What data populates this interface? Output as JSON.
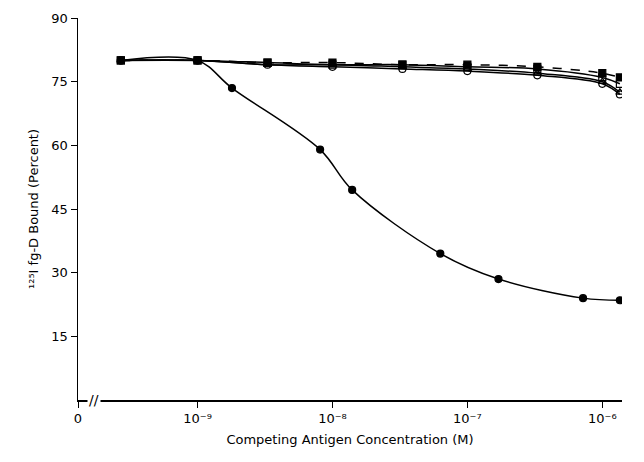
{
  "chart_data": {
    "type": "line",
    "x_title": "Competing Antigen Concentration (M)",
    "y_title": "¹²⁵I fg-D Bound (Percent)",
    "log": "x",
    "grid": false,
    "xlim": [
      1.3e-10,
      1.4e-06
    ],
    "xticks": [
      {
        "value": 1.3e-10,
        "label": "0"
      },
      {
        "value": 1e-09,
        "label": "10⁻⁹"
      },
      {
        "value": 1e-08,
        "label": "10⁻⁸"
      },
      {
        "value": 1e-07,
        "label": "10⁻⁷"
      },
      {
        "value": 1e-06,
        "label": "10⁻⁶"
      }
    ],
    "ylim": [
      0,
      90
    ],
    "yticks": [
      15,
      30,
      45,
      60,
      75,
      90
    ],
    "annotations": [
      {
        "text": "//",
        "x": 1.7e-10,
        "y": 0
      }
    ],
    "series": [
      {
        "color": "#000000",
        "marker": "circle",
        "line_style": "solid",
        "x": [
          2.7e-10,
          1e-09,
          1.8e-09,
          8.1e-09,
          1.4e-08,
          6.3e-08,
          1.7e-07,
          7.2e-07,
          1.35e-06
        ],
        "values": [
          80,
          80,
          73.5,
          59,
          49.5,
          34.5,
          28.5,
          24,
          23.5
        ]
      },
      {
        "color": "#000000",
        "marker": "circle-open",
        "line_style": "solid",
        "x": [
          2.7e-10,
          1e-09,
          3.3e-09,
          1e-08,
          3.3e-08,
          1e-07,
          3.3e-07,
          1e-06,
          1.35e-06
        ],
        "values": [
          80,
          80,
          79,
          78.5,
          78,
          77.5,
          76.5,
          74.5,
          72
        ]
      },
      {
        "color": "#000000",
        "marker": "triangle-up-open",
        "line_style": "solid",
        "x": [
          2.7e-10,
          1e-09,
          3.3e-09,
          1e-08,
          3.3e-08,
          1e-07,
          3.3e-07,
          1e-06,
          1.35e-06
        ],
        "values": [
          80,
          80,
          79,
          79,
          78.5,
          78,
          77,
          75,
          72.5
        ]
      },
      {
        "color": "#000000",
        "marker": "square-open",
        "line_style": "solid",
        "x": [
          2.7e-10,
          1e-09,
          3.3e-09,
          1e-08,
          3.3e-08,
          1e-07,
          3.3e-07,
          1e-06,
          1.35e-06
        ],
        "values": [
          80,
          80,
          79.5,
          79,
          79,
          78.5,
          78,
          76,
          74.5
        ]
      },
      {
        "color": "#000000",
        "marker": "square",
        "line_style": "dashed",
        "x": [
          2.7e-10,
          1e-09,
          3.3e-09,
          1e-08,
          3.3e-08,
          1e-07,
          3.3e-07,
          1e-06,
          1.35e-06
        ],
        "values": [
          80,
          80,
          79.5,
          79.5,
          79,
          79,
          78.5,
          77,
          76
        ]
      }
    ]
  }
}
